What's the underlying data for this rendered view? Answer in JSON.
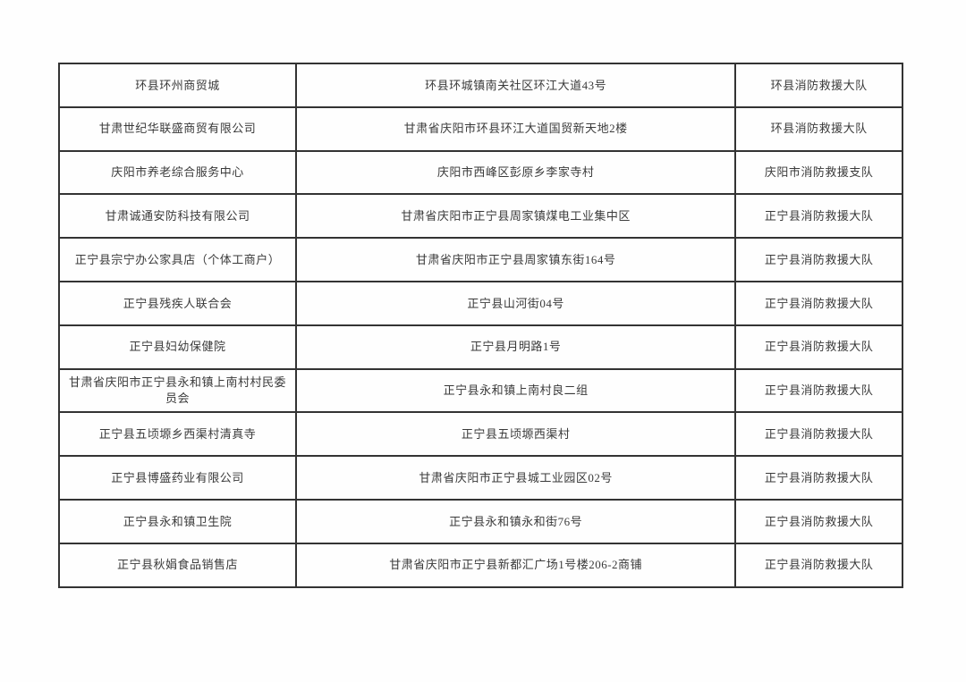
{
  "page": {
    "background_color": "#fefefe",
    "border_color": "#333333",
    "text_color": "#3a3a3a"
  },
  "table": {
    "columns": [
      "unit-name",
      "address",
      "fire-rescue-agency"
    ],
    "rows": [
      {
        "name": "环县环州商贸城",
        "address": "环县环城镇南关社区环江大道43号",
        "agency": "环县消防救援大队"
      },
      {
        "name": "甘肃世纪华联盛商贸有限公司",
        "address": "甘肃省庆阳市环县环江大道国贸新天地2楼",
        "agency": "环县消防救援大队"
      },
      {
        "name": "庆阳市养老综合服务中心",
        "address": "庆阳市西峰区彭原乡李家寺村",
        "agency": "庆阳市消防救援支队"
      },
      {
        "name": "甘肃诚通安防科技有限公司",
        "address": "甘肃省庆阳市正宁县周家镇煤电工业集中区",
        "agency": "正宁县消防救援大队"
      },
      {
        "name": "正宁县宗宁办公家具店（个体工商户）",
        "address": "甘肃省庆阳市正宁县周家镇东街164号",
        "agency": "正宁县消防救援大队"
      },
      {
        "name": "正宁县残疾人联合会",
        "address": "正宁县山河街04号",
        "agency": "正宁县消防救援大队"
      },
      {
        "name": "正宁县妇幼保健院",
        "address": "正宁县月明路1号",
        "agency": "正宁县消防救援大队"
      },
      {
        "name": "甘肃省庆阳市正宁县永和镇上南村村民委员会",
        "address": "正宁县永和镇上南村良二组",
        "agency": "正宁县消防救援大队"
      },
      {
        "name": "正宁县五顷塬乡西渠村清真寺",
        "address": "正宁县五顷塬西渠村",
        "agency": "正宁县消防救援大队"
      },
      {
        "name": "正宁县博盛药业有限公司",
        "address": "甘肃省庆阳市正宁县城工业园区02号",
        "agency": "正宁县消防救援大队"
      },
      {
        "name": "正宁县永和镇卫生院",
        "address": "正宁县永和镇永和街76号",
        "agency": "正宁县消防救援大队"
      },
      {
        "name": "正宁县秋娟食品销售店",
        "address": "甘肃省庆阳市正宁县新都汇广场1号楼206-2商铺",
        "agency": "正宁县消防救援大队"
      }
    ]
  }
}
